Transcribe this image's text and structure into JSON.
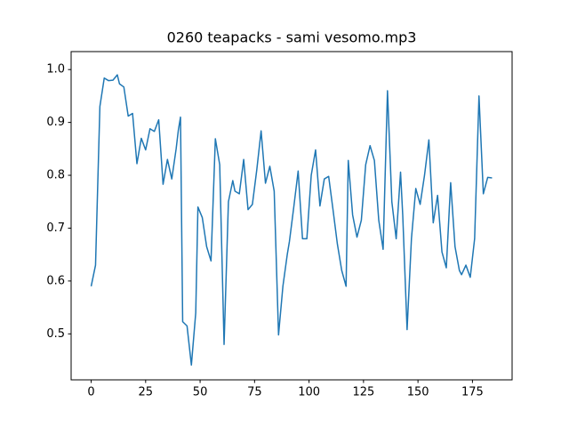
{
  "chart_data": {
    "type": "line",
    "title": "0260 teapacks - sami vesomo.mp3",
    "x": [
      0,
      2,
      4,
      6,
      8,
      10,
      12,
      13,
      15,
      17,
      19,
      21,
      23,
      25,
      27,
      29,
      31,
      33,
      35,
      37,
      39,
      40,
      41,
      42,
      44,
      46,
      48,
      49,
      51,
      53,
      55,
      57,
      59,
      61,
      63,
      65,
      66,
      68,
      70,
      72,
      74,
      76,
      78,
      80,
      82,
      84,
      86,
      88,
      90,
      91,
      93,
      95,
      97,
      99,
      101,
      103,
      105,
      107,
      109,
      111,
      113,
      115,
      117,
      118,
      120,
      122,
      124,
      126,
      128,
      130,
      132,
      134,
      136,
      138,
      140,
      142,
      143,
      145,
      147,
      149,
      151,
      153,
      155,
      157,
      159,
      161,
      163,
      165,
      167,
      169,
      170,
      172,
      174,
      176,
      178,
      180,
      182,
      184
    ],
    "values": [
      0.59,
      0.63,
      0.93,
      0.984,
      0.979,
      0.98,
      0.99,
      0.973,
      0.967,
      0.912,
      0.917,
      0.822,
      0.87,
      0.848,
      0.888,
      0.883,
      0.905,
      0.783,
      0.83,
      0.793,
      0.85,
      0.885,
      0.91,
      0.523,
      0.515,
      0.441,
      0.54,
      0.74,
      0.72,
      0.665,
      0.638,
      0.869,
      0.82,
      0.48,
      0.75,
      0.79,
      0.77,
      0.765,
      0.83,
      0.735,
      0.745,
      0.81,
      0.884,
      0.785,
      0.817,
      0.77,
      0.498,
      0.59,
      0.65,
      0.675,
      0.74,
      0.808,
      0.68,
      0.68,
      0.8,
      0.848,
      0.742,
      0.793,
      0.798,
      0.735,
      0.67,
      0.62,
      0.59,
      0.828,
      0.725,
      0.683,
      0.715,
      0.82,
      0.856,
      0.828,
      0.715,
      0.66,
      0.96,
      0.75,
      0.68,
      0.806,
      0.725,
      0.508,
      0.68,
      0.775,
      0.745,
      0.8,
      0.867,
      0.71,
      0.762,
      0.655,
      0.625,
      0.786,
      0.665,
      0.62,
      0.612,
      0.63,
      0.607,
      0.68,
      0.95,
      0.765,
      0.796,
      0.795
    ],
    "color": "#1f77b4",
    "xlim": [
      -9.2,
      193.2
    ],
    "ylim": [
      0.413,
      1.034
    ],
    "xticks": [
      0,
      25,
      50,
      75,
      100,
      125,
      150,
      175
    ],
    "yticks": [
      0.5,
      0.6,
      0.7,
      0.8,
      0.9,
      {
        "value": 1,
        "label": "1.0"
      }
    ],
    "grid": false
  }
}
